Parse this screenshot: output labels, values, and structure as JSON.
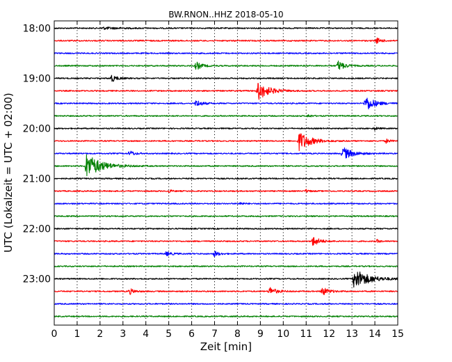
{
  "chart_data": {
    "type": "line",
    "title": "BW.RNON..HHZ 2018-05-10",
    "xlabel": "Zeit  [min]",
    "ylabel": "UTC (Lokalzeit = UTC + 02:00)",
    "xlim": [
      0,
      15
    ],
    "x_ticks": [
      "0",
      "1",
      "2",
      "3",
      "4",
      "5",
      "6",
      "7",
      "8",
      "9",
      "10",
      "11",
      "12",
      "13",
      "14",
      "15"
    ],
    "y_ticks": [
      "18:00",
      "19:00",
      "20:00",
      "21:00",
      "22:00",
      "23:00"
    ],
    "y_tick_rows": [
      0,
      4,
      8,
      12,
      16,
      20
    ],
    "grid": "vertical dotted at each minute",
    "colors": [
      "#000000",
      "#ff0000",
      "#0000ff",
      "#008000"
    ],
    "rows": [
      {
        "start": "18:00",
        "events": [
          {
            "t": 2.1,
            "a": 1.5,
            "w": 1.5
          }
        ]
      },
      {
        "start": "18:15",
        "events": [
          {
            "t": 14.1,
            "a": 4,
            "w": 0.4
          }
        ]
      },
      {
        "start": "18:30",
        "events": []
      },
      {
        "start": "18:45",
        "events": [
          {
            "t": 6.2,
            "a": 6,
            "w": 0.5
          },
          {
            "t": 12.4,
            "a": 7,
            "w": 0.6
          }
        ]
      },
      {
        "start": "19:00",
        "events": [
          {
            "t": 2.5,
            "a": 5,
            "w": 0.5
          }
        ]
      },
      {
        "start": "19:15",
        "events": [
          {
            "t": 8.9,
            "a": 13,
            "w": 1.0
          }
        ]
      },
      {
        "start": "19:30",
        "events": [
          {
            "t": 6.2,
            "a": 5,
            "w": 0.5
          },
          {
            "t": 13.6,
            "a": 11,
            "w": 0.8
          }
        ]
      },
      {
        "start": "19:45",
        "events": [
          {
            "t": 11.1,
            "a": 2,
            "w": 0.3
          }
        ]
      },
      {
        "start": "20:00",
        "events": [
          {
            "t": 14.0,
            "a": 2,
            "w": 0.3
          }
        ]
      },
      {
        "start": "20:15",
        "events": [
          {
            "t": 10.7,
            "a": 14,
            "w": 1.0
          },
          {
            "t": 14.5,
            "a": 3,
            "w": 0.3
          }
        ]
      },
      {
        "start": "20:30",
        "events": [
          {
            "t": 3.3,
            "a": 4,
            "w": 0.4
          },
          {
            "t": 12.6,
            "a": 9,
            "w": 0.9
          }
        ]
      },
      {
        "start": "20:45",
        "events": [
          {
            "t": 1.4,
            "a": 18,
            "w": 1.3
          }
        ]
      },
      {
        "start": "21:00",
        "events": []
      },
      {
        "start": "21:15",
        "events": [
          {
            "t": 5.0,
            "a": 2,
            "w": 0.3
          },
          {
            "t": 11.0,
            "a": 2,
            "w": 0.3
          }
        ]
      },
      {
        "start": "21:30",
        "events": [
          {
            "t": 8.1,
            "a": 2,
            "w": 0.3
          }
        ]
      },
      {
        "start": "21:45",
        "events": []
      },
      {
        "start": "22:00",
        "events": []
      },
      {
        "start": "22:15",
        "events": [
          {
            "t": 11.3,
            "a": 7,
            "w": 0.6
          },
          {
            "t": 14.1,
            "a": 2,
            "w": 0.3
          }
        ]
      },
      {
        "start": "22:30",
        "events": [
          {
            "t": 4.9,
            "a": 3,
            "w": 0.5
          },
          {
            "t": 7.0,
            "a": 4,
            "w": 0.4
          }
        ]
      },
      {
        "start": "22:45",
        "events": []
      },
      {
        "start": "23:00",
        "events": [
          {
            "t": 13.1,
            "a": 15,
            "w": 1.3
          }
        ]
      },
      {
        "start": "23:15",
        "events": [
          {
            "t": 3.3,
            "a": 4,
            "w": 0.4
          },
          {
            "t": 9.4,
            "a": 6,
            "w": 0.6
          },
          {
            "t": 11.7,
            "a": 6,
            "w": 0.6
          }
        ]
      },
      {
        "start": "23:30",
        "events": []
      },
      {
        "start": "23:45",
        "events": []
      }
    ]
  }
}
